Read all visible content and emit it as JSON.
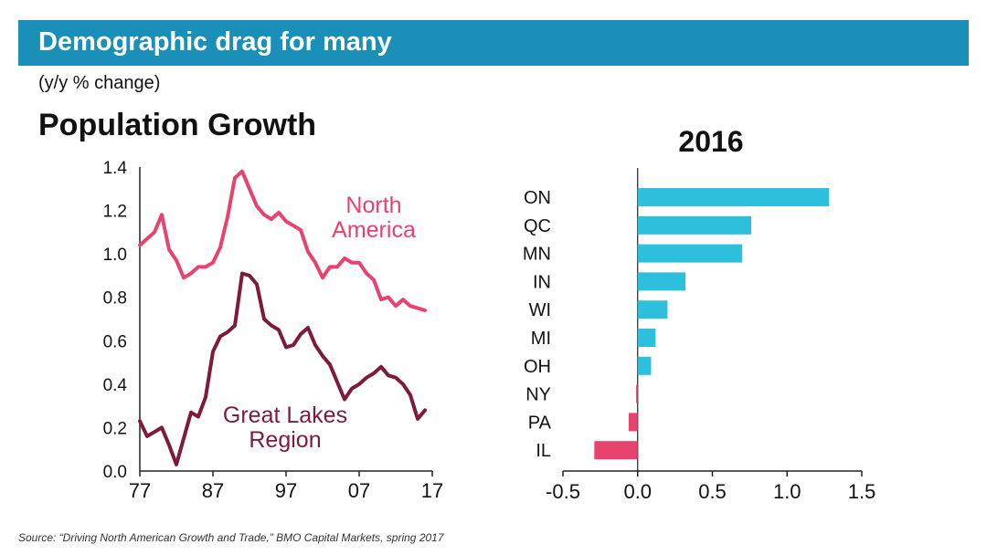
{
  "header": {
    "banner_title": "Demographic drag for many",
    "subtitle": "(y/y % change)",
    "source": "Source: “Driving North American Growth and Trade,” BMO Capital Markets, spring 2017"
  },
  "colors": {
    "banner": "#1a8fb8",
    "north_america": "#e8426f",
    "great_lakes": "#7e1a3c",
    "bar_positive": "#2ebfdc",
    "bar_negative": "#e8426f"
  },
  "chart_data": [
    {
      "type": "line",
      "title": "Population Growth",
      "xlabel": "",
      "ylabel": "",
      "x_tick_labels": [
        "77",
        "87",
        "97",
        "07",
        "17"
      ],
      "x_ticks": [
        1977,
        1987,
        1997,
        2007,
        2017
      ],
      "xlim": [
        1977,
        2017
      ],
      "y_ticks": [
        "0.0",
        "0.2",
        "0.4",
        "0.6",
        "0.8",
        "1.0",
        "1.2",
        "1.4"
      ],
      "ylim": [
        0,
        1.4
      ],
      "series_labels": [
        {
          "line1": "North",
          "line2": "America"
        },
        {
          "line1": "Great Lakes",
          "line2": "Region"
        }
      ],
      "x": [
        1977,
        1978,
        1979,
        1980,
        1981,
        1982,
        1983,
        1984,
        1985,
        1986,
        1987,
        1988,
        1989,
        1990,
        1991,
        1992,
        1993,
        1994,
        1995,
        1996,
        1997,
        1998,
        1999,
        2000,
        2001,
        2002,
        2003,
        2004,
        2005,
        2006,
        2007,
        2008,
        2009,
        2010,
        2011,
        2012,
        2013,
        2014,
        2015,
        2016
      ],
      "series": [
        {
          "name": "North America",
          "values": [
            1.04,
            1.07,
            1.1,
            1.18,
            1.02,
            0.97,
            0.89,
            0.91,
            0.94,
            0.94,
            0.96,
            1.03,
            1.17,
            1.35,
            1.38,
            1.3,
            1.22,
            1.18,
            1.16,
            1.19,
            1.15,
            1.13,
            1.11,
            1.01,
            0.96,
            0.89,
            0.94,
            0.94,
            0.98,
            0.96,
            0.96,
            0.91,
            0.88,
            0.79,
            0.8,
            0.76,
            0.79,
            0.76,
            0.75,
            0.74
          ]
        },
        {
          "name": "Great Lakes Region",
          "values": [
            0.23,
            0.16,
            0.18,
            0.2,
            0.12,
            0.03,
            0.15,
            0.27,
            0.25,
            0.34,
            0.55,
            0.62,
            0.64,
            0.67,
            0.91,
            0.9,
            0.86,
            0.7,
            0.67,
            0.65,
            0.57,
            0.58,
            0.63,
            0.66,
            0.58,
            0.53,
            0.49,
            0.41,
            0.33,
            0.38,
            0.4,
            0.43,
            0.45,
            0.48,
            0.44,
            0.43,
            0.4,
            0.35,
            0.24,
            0.28
          ]
        }
      ]
    },
    {
      "type": "bar",
      "orientation": "horizontal",
      "title": "2016",
      "categories": [
        "ON",
        "QC",
        "MN",
        "IN",
        "WI",
        "MI",
        "OH",
        "NY",
        "PA",
        "IL"
      ],
      "values": [
        1.28,
        0.76,
        0.7,
        0.32,
        0.2,
        0.12,
        0.09,
        -0.01,
        -0.06,
        -0.29
      ],
      "x_ticks": [
        "-0.5",
        "0.0",
        "0.5",
        "1.0",
        "1.5"
      ],
      "xlim": [
        -0.5,
        1.5
      ]
    }
  ]
}
